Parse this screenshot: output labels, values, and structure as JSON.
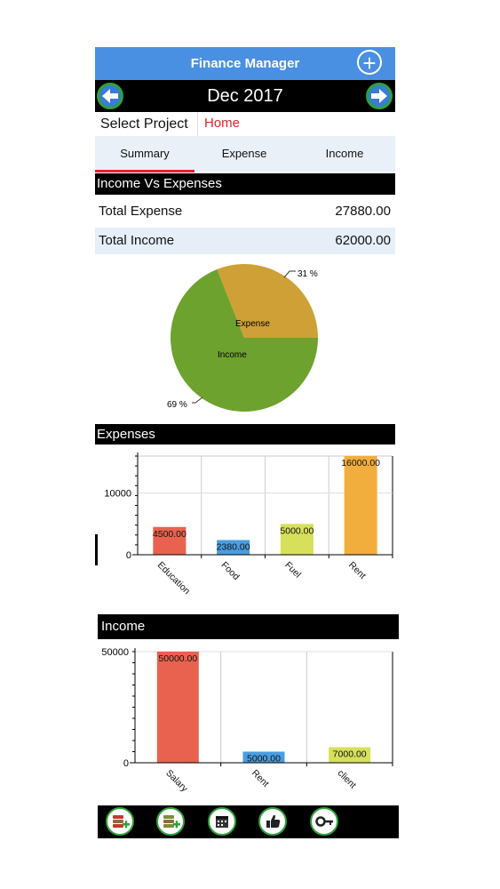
{
  "header": {
    "title": "Finance Manager"
  },
  "month": {
    "label": "Dec 2017"
  },
  "project": {
    "label": "Select Project",
    "value": "Home"
  },
  "tabs": [
    {
      "label": "Summary",
      "active": true
    },
    {
      "label": "Expense",
      "active": false
    },
    {
      "label": "Income",
      "active": false
    }
  ],
  "summary": {
    "section_title": "Income Vs Expenses",
    "rows": [
      {
        "label": "Total Expense",
        "value": "27880.00"
      },
      {
        "label": "Total Income",
        "value": "62000.00"
      }
    ]
  },
  "expenses_section": {
    "title": "Expenses"
  },
  "income_section": {
    "title": "Income"
  },
  "colors": {
    "header": "#4a90e2",
    "accent_red": "#e0262b",
    "pie_expense": "#cfa035",
    "pie_income": "#6ea22f",
    "bar_red": "#e8624f",
    "bar_blue": "#4a9de0",
    "bar_yellow_green": "#d6e05a",
    "bar_orange": "#f2ae3d"
  },
  "chart_data": [
    {
      "type": "pie",
      "slices": [
        {
          "label": "Expense",
          "percent_label": "31 %",
          "value": 31
        },
        {
          "label": "Income",
          "percent_label": "69 %",
          "value": 69
        }
      ]
    },
    {
      "type": "bar",
      "categories": [
        "Education",
        "Food",
        "Fuel",
        "Rent"
      ],
      "values": [
        4500,
        2380,
        5000,
        16000
      ],
      "value_labels": [
        "4500.00",
        "2380.00",
        "5000.00",
        "16000.00"
      ],
      "y_ticks": [
        "0",
        "10000"
      ],
      "ylim": [
        0,
        16000
      ]
    },
    {
      "type": "bar",
      "categories": [
        "Salary",
        "Rent",
        "client"
      ],
      "values": [
        50000,
        5000,
        7000
      ],
      "value_labels": [
        "50000.00",
        "5000.00",
        "7000.00"
      ],
      "y_ticks": [
        "0",
        "50000"
      ],
      "ylim": [
        0,
        50000
      ]
    }
  ],
  "toolbar": {
    "items": [
      {
        "icon": "add-expense-icon"
      },
      {
        "icon": "add-income-icon"
      },
      {
        "icon": "calendar-icon"
      },
      {
        "icon": "thumbs-up-icon"
      },
      {
        "icon": "key-icon"
      }
    ]
  }
}
